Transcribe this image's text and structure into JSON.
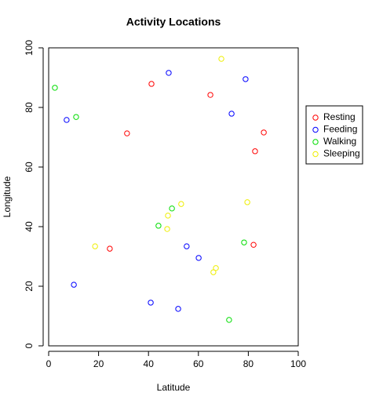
{
  "chart_data": {
    "type": "scatter",
    "title": "Activity Locations",
    "x_label": "Latitude",
    "y_label": "Longitude",
    "xlim": [
      0,
      100
    ],
    "ylim": [
      0,
      100
    ],
    "xticks": [
      0,
      20,
      40,
      60,
      80,
      100
    ],
    "yticks": [
      0,
      20,
      40,
      60,
      80,
      100
    ],
    "legend": "right",
    "series": [
      {
        "name": "Resting",
        "color": "#ff0000",
        "x": [
          41.2,
          64.8,
          31.4,
          86.2,
          82.7,
          24.5,
          82.1
        ],
        "values": [
          87.9,
          84.2,
          71.3,
          71.6,
          65.3,
          32.6,
          33.9
        ]
      },
      {
        "name": "Feeding",
        "color": "#0000ff",
        "x": [
          48.1,
          78.9,
          7.2,
          73.3,
          55.3,
          60.1,
          10.1,
          40.9,
          51.9
        ],
        "values": [
          91.6,
          89.5,
          75.8,
          77.9,
          33.4,
          29.5,
          20.5,
          14.5,
          12.4
        ]
      },
      {
        "name": "Walking",
        "color": "#00dd00",
        "x": [
          2.5,
          11.0,
          49.4,
          44.0,
          78.3,
          72.3
        ],
        "values": [
          86.6,
          76.8,
          46.1,
          40.3,
          34.7,
          8.7
        ]
      },
      {
        "name": "Sleeping",
        "color": "#eeee00",
        "x": [
          69.2,
          53.1,
          79.6,
          47.8,
          47.5,
          18.6,
          67.0,
          66.0
        ],
        "values": [
          96.3,
          47.6,
          48.2,
          43.7,
          39.2,
          33.4,
          26.1,
          24.7
        ]
      }
    ]
  }
}
